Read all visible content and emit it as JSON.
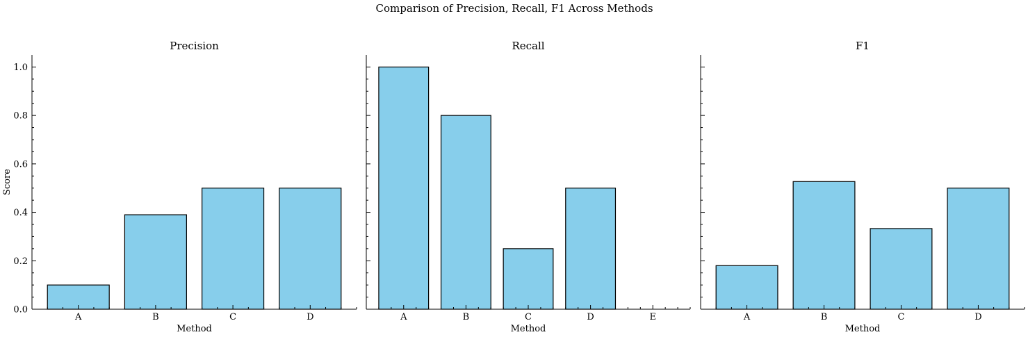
{
  "figure": {
    "suptitle": "Comparison of Precision, Recall, F1 Across Methods",
    "bar_color": "#87CEEB",
    "edge_color": "#000000"
  },
  "chart_data": [
    {
      "type": "bar",
      "title": "Precision",
      "xlabel": "Method",
      "ylabel": "Score",
      "categories": [
        "A",
        "B",
        "C",
        "D"
      ],
      "values": [
        0.1,
        0.39,
        0.5,
        0.5
      ],
      "ylim": [
        0,
        1.05
      ],
      "yticks": [
        "0.0",
        "0.2",
        "0.4",
        "0.6",
        "0.8",
        "1.0"
      ]
    },
    {
      "type": "bar",
      "title": "Recall",
      "xlabel": "Method",
      "ylabel": "",
      "categories": [
        "A",
        "B",
        "C",
        "D",
        "E"
      ],
      "values": [
        1.0,
        0.8,
        0.25,
        0.5,
        0.0
      ],
      "ylim": [
        0,
        1.05
      ],
      "yticks": []
    },
    {
      "type": "bar",
      "title": "F1",
      "xlabel": "Method",
      "ylabel": "",
      "categories": [
        "A",
        "B",
        "C",
        "D"
      ],
      "values": [
        0.18,
        0.527,
        0.333,
        0.5
      ],
      "ylim": [
        0,
        1.05
      ],
      "yticks": []
    }
  ]
}
